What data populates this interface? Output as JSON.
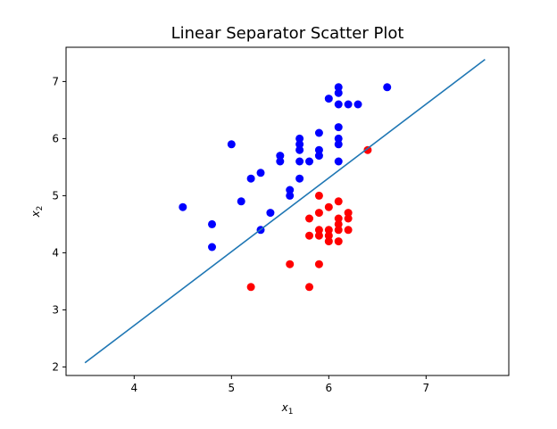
{
  "chart_data": {
    "type": "scatter",
    "title": "Linear Separator Scatter Plot",
    "xlabel": "x",
    "xlabel_sub": "1",
    "ylabel": "x",
    "ylabel_sub": "2",
    "xlim": [
      3.3,
      7.85
    ],
    "ylim": [
      1.85,
      7.6
    ],
    "xticks": [
      4,
      5,
      6,
      7
    ],
    "yticks": [
      2,
      3,
      4,
      5,
      6,
      7
    ],
    "grid": false,
    "series": [
      {
        "color": "#0000ff",
        "marker": "circle",
        "points": [
          [
            4.5,
            4.8
          ],
          [
            4.8,
            4.5
          ],
          [
            4.8,
            4.1
          ],
          [
            5.0,
            5.9
          ],
          [
            5.1,
            4.9
          ],
          [
            5.2,
            5.3
          ],
          [
            5.3,
            5.4
          ],
          [
            5.3,
            4.4
          ],
          [
            5.4,
            4.7
          ],
          [
            5.5,
            5.7
          ],
          [
            5.5,
            5.6
          ],
          [
            5.6,
            5.1
          ],
          [
            5.6,
            5.0
          ],
          [
            5.7,
            6.0
          ],
          [
            5.7,
            5.9
          ],
          [
            5.7,
            5.8
          ],
          [
            5.7,
            5.6
          ],
          [
            5.7,
            5.3
          ],
          [
            5.8,
            5.6
          ],
          [
            5.9,
            6.1
          ],
          [
            5.9,
            5.8
          ],
          [
            5.9,
            5.7
          ],
          [
            6.0,
            6.7
          ],
          [
            6.1,
            6.9
          ],
          [
            6.1,
            6.8
          ],
          [
            6.1,
            6.6
          ],
          [
            6.1,
            6.2
          ],
          [
            6.1,
            6.0
          ],
          [
            6.1,
            5.9
          ],
          [
            6.1,
            5.6
          ],
          [
            6.2,
            6.6
          ],
          [
            6.3,
            6.6
          ],
          [
            6.6,
            6.9
          ]
        ]
      },
      {
        "color": "#ff0000",
        "marker": "circle",
        "points": [
          [
            5.2,
            3.4
          ],
          [
            5.6,
            3.8
          ],
          [
            5.8,
            3.4
          ],
          [
            5.8,
            4.3
          ],
          [
            5.8,
            4.6
          ],
          [
            5.9,
            5.0
          ],
          [
            5.9,
            4.7
          ],
          [
            5.9,
            4.4
          ],
          [
            5.9,
            4.3
          ],
          [
            5.9,
            3.8
          ],
          [
            6.0,
            4.8
          ],
          [
            6.0,
            4.4
          ],
          [
            6.0,
            4.3
          ],
          [
            6.0,
            4.2
          ],
          [
            6.1,
            4.9
          ],
          [
            6.1,
            4.6
          ],
          [
            6.1,
            4.5
          ],
          [
            6.1,
            4.4
          ],
          [
            6.1,
            4.2
          ],
          [
            6.2,
            4.7
          ],
          [
            6.2,
            4.6
          ],
          [
            6.2,
            4.4
          ],
          [
            6.4,
            5.8
          ]
        ]
      }
    ],
    "line": {
      "color": "#1f77b4",
      "points": [
        [
          3.5,
          2.08
        ],
        [
          7.6,
          7.38
        ]
      ]
    }
  }
}
